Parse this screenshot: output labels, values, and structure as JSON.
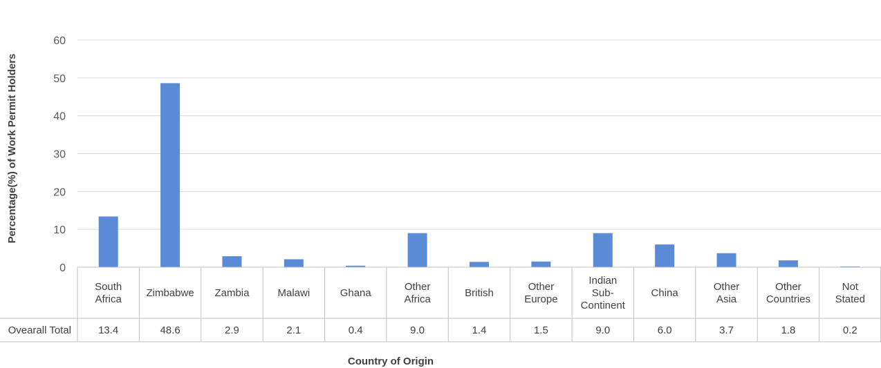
{
  "chart_data": {
    "type": "bar",
    "ylabel": "Percentage(%) of Work Permit Holders",
    "xlabel": "Country of Origin",
    "ylim": [
      0,
      60
    ],
    "yticks": [
      "0",
      "10",
      "20",
      "30",
      "40",
      "50",
      "60"
    ],
    "grid": true,
    "bar_color": "#5B8BD6",
    "categories": [
      [
        "South",
        "Africa"
      ],
      [
        "Zimbabwe"
      ],
      [
        "Zambia"
      ],
      [
        "Malawi"
      ],
      [
        "Ghana"
      ],
      [
        "Other",
        "Africa"
      ],
      [
        "British"
      ],
      [
        "Other",
        "Europe"
      ],
      [
        "Indian",
        "Sub-",
        "Continent"
      ],
      [
        "China"
      ],
      [
        "Other",
        "Asia"
      ],
      [
        "Other",
        "Countries"
      ],
      [
        "Not",
        "Stated"
      ]
    ],
    "series": [
      {
        "name": "Ovearall Total",
        "values": [
          13.4,
          48.6,
          2.9,
          2.1,
          0.4,
          9.0,
          1.4,
          1.5,
          9.0,
          6.0,
          3.7,
          1.8,
          0.2
        ],
        "labels": [
          "13.4",
          "48.6",
          "2.9",
          "2.1",
          "0.4",
          "9.0",
          "1.4",
          "1.5",
          "9.0",
          "6.0",
          "3.7",
          "1.8",
          "0.2"
        ]
      }
    ]
  }
}
